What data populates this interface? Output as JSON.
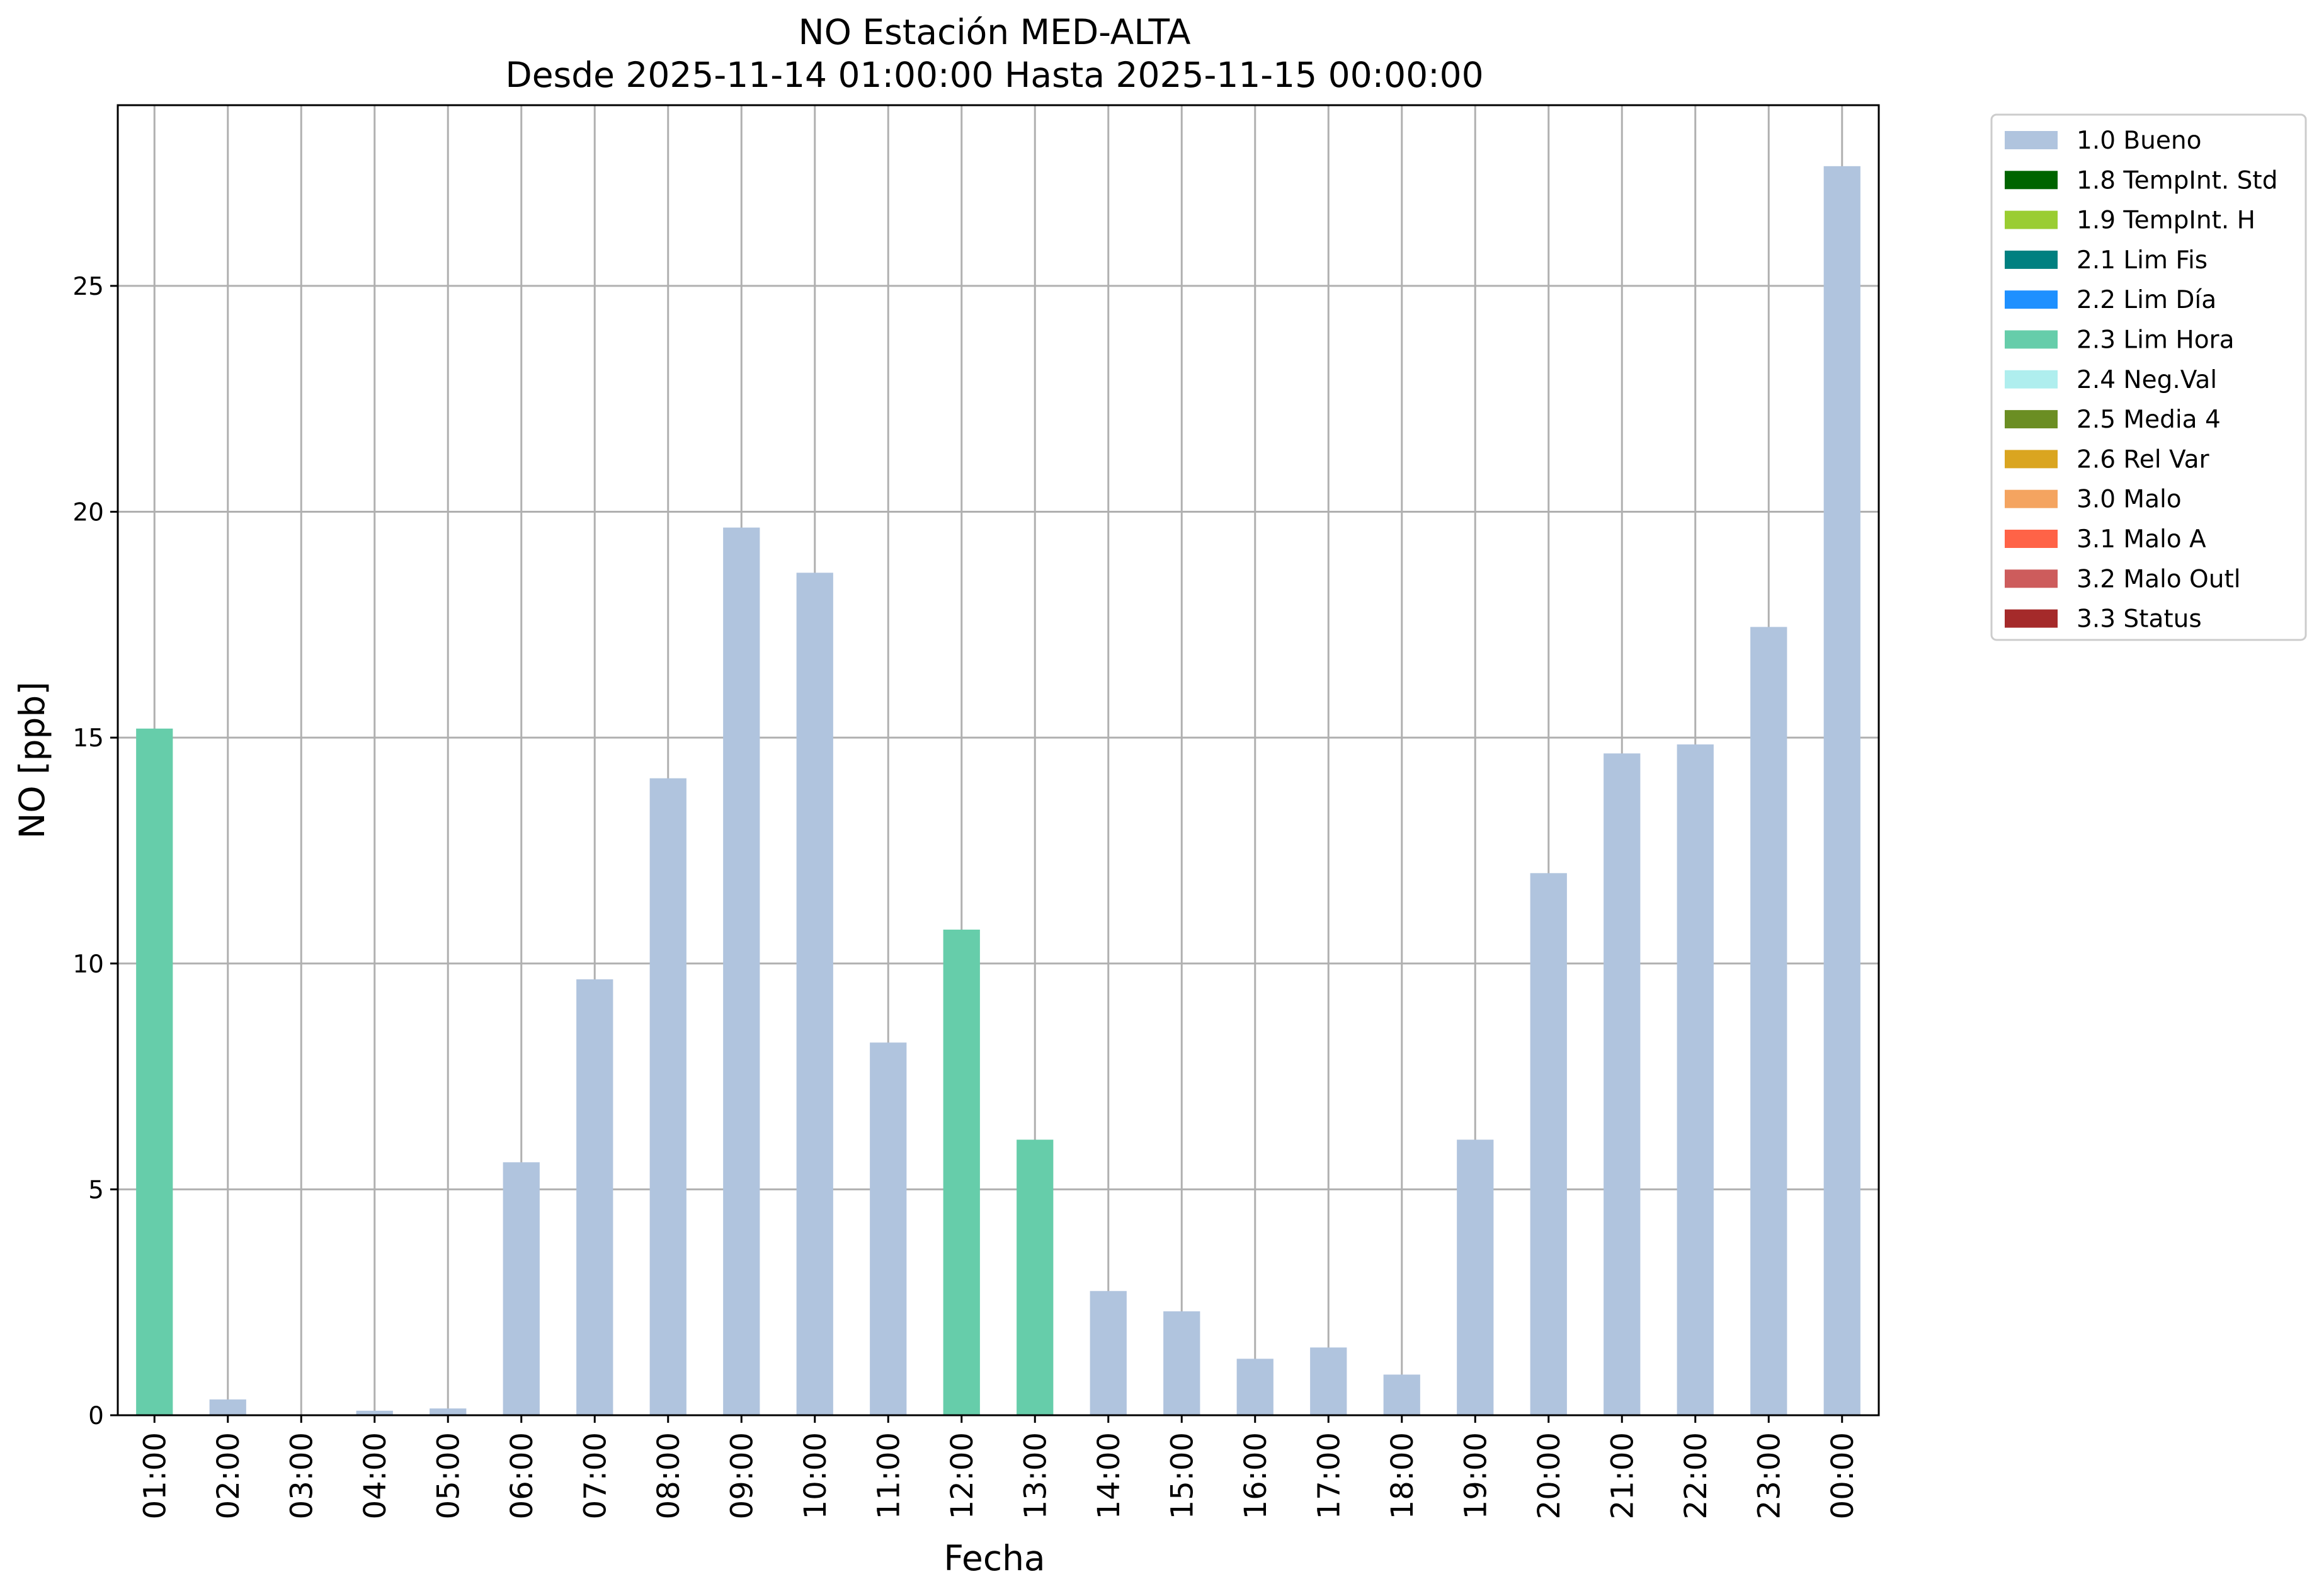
{
  "chart_data": {
    "type": "bar",
    "title": "NO Estación MED-ALTA",
    "subtitle": "Desde 2025-11-14 01:00:00 Hasta 2025-11-15 00:00:00",
    "xlabel": "Fecha",
    "ylabel": "NO [ppb]",
    "ylim": [
      0,
      29
    ],
    "yticks": [
      0,
      5,
      10,
      15,
      20,
      25
    ],
    "grid": true,
    "legend_position": "outside-right",
    "categories": [
      "01:00",
      "02:00",
      "03:00",
      "04:00",
      "05:00",
      "06:00",
      "07:00",
      "08:00",
      "09:00",
      "10:00",
      "11:00",
      "12:00",
      "13:00",
      "14:00",
      "15:00",
      "16:00",
      "17:00",
      "18:00",
      "19:00",
      "20:00",
      "21:00",
      "22:00",
      "23:00",
      "00:00"
    ],
    "values": [
      15.2,
      0.35,
      0.0,
      0.1,
      0.15,
      5.6,
      9.65,
      14.1,
      19.65,
      18.65,
      8.25,
      10.75,
      6.1,
      2.75,
      2.3,
      1.25,
      1.5,
      0.9,
      6.1,
      12.0,
      14.65,
      14.85,
      17.45,
      27.65
    ],
    "flags": [
      "2.3 Lim Hora",
      "1.0 Bueno",
      "1.0 Bueno",
      "1.0 Bueno",
      "1.0 Bueno",
      "1.0 Bueno",
      "1.0 Bueno",
      "1.0 Bueno",
      "1.0 Bueno",
      "1.0 Bueno",
      "1.0 Bueno",
      "2.3 Lim Hora",
      "2.3 Lim Hora",
      "1.0 Bueno",
      "1.0 Bueno",
      "1.0 Bueno",
      "1.0 Bueno",
      "1.0 Bueno",
      "1.0 Bueno",
      "1.0 Bueno",
      "1.0 Bueno",
      "1.0 Bueno",
      "1.0 Bueno",
      "1.0 Bueno"
    ],
    "legend": [
      {
        "label": "1.0 Bueno",
        "color": "#b0c4de"
      },
      {
        "label": "1.8 TempInt. Std",
        "color": "#006400"
      },
      {
        "label": "1.9 TempInt. H",
        "color": "#9acd32"
      },
      {
        "label": "2.1 Lim Fis",
        "color": "#008080"
      },
      {
        "label": "2.2 Lim Día",
        "color": "#1e90ff"
      },
      {
        "label": "2.3 Lim Hora",
        "color": "#66cdaa"
      },
      {
        "label": "2.4 Neg.Val",
        "color": "#afeeee"
      },
      {
        "label": "2.5 Media 4",
        "color": "#6b8e23"
      },
      {
        "label": "2.6 Rel Var",
        "color": "#daa520"
      },
      {
        "label": "3.0 Malo",
        "color": "#f4a460"
      },
      {
        "label": "3.1 Malo A",
        "color": "#ff6347"
      },
      {
        "label": "3.2 Malo Outl",
        "color": "#cd5c5c"
      },
      {
        "label": "3.3 Status",
        "color": "#a52a2a"
      }
    ]
  }
}
